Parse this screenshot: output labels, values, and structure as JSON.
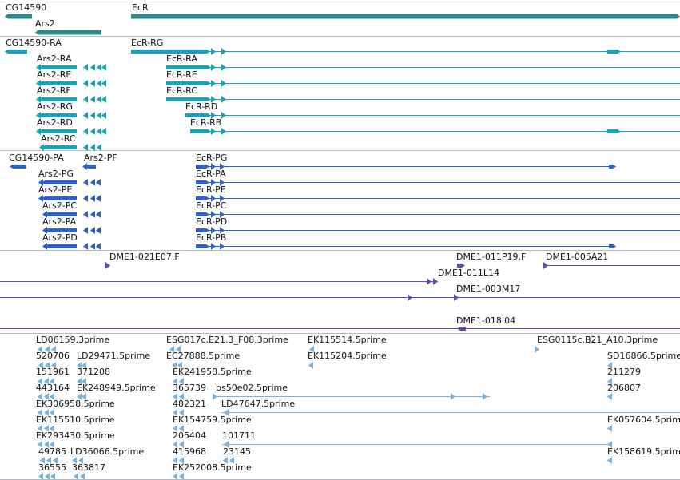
{
  "colors": {
    "genes": "#2e8a8a",
    "transcripts": "#1aa0b8",
    "proteins": "#2f62c6",
    "clones": "#6a4aa8",
    "ests": "#78b4de",
    "separator": "#b8b8c8"
  },
  "panels": [
    {
      "id": "genes",
      "color": "genes",
      "features": [
        {
          "label": "CG14590",
          "strand": "-",
          "exons": [
            [
              6,
              40
            ]
          ]
        },
        {
          "label": "Ars2",
          "strand": "-",
          "exons": [
            [
              44,
              127
            ]
          ]
        },
        {
          "label": "EcR",
          "strand": "+",
          "exons": [
            [
              164,
              851
            ]
          ]
        }
      ]
    },
    {
      "id": "transcripts",
      "color": "transcripts",
      "features": [
        {
          "label": "CG14590-RA",
          "strand": "-",
          "exons": [
            [
              6,
              34
            ]
          ]
        },
        {
          "label": "EcR-RG",
          "strand": "+",
          "intron": [
            164,
            851
          ],
          "exons": [
            [
              164,
              263
            ],
            [
              760,
              777
            ]
          ],
          "arrows": [
            270,
            283
          ]
        },
        {
          "label": "Ars2-RA",
          "strand": "-",
          "exons": [
            [
              48,
              96
            ]
          ],
          "arrows": [
            45,
            104,
            113,
            121,
            127
          ]
        },
        {
          "label": "EcR-RA",
          "strand": "+",
          "intron": [
            208,
            851
          ],
          "exons": [
            [
              208,
              264
            ]
          ],
          "arrows": [
            270,
            283
          ]
        },
        {
          "label": "Ars2-RE",
          "strand": "-",
          "exons": [
            [
              48,
              96
            ]
          ],
          "arrows": [
            45,
            104,
            113,
            121,
            127
          ]
        },
        {
          "label": "EcR-RE",
          "strand": "+",
          "intron": [
            208,
            851
          ],
          "exons": [
            [
              208,
              264
            ]
          ],
          "arrows": [
            270,
            283
          ]
        },
        {
          "label": "Ars2-RF",
          "strand": "-",
          "exons": [
            [
              48,
              96
            ]
          ],
          "arrows": [
            45,
            104,
            113,
            121,
            127
          ]
        },
        {
          "label": "EcR-RC",
          "strand": "+",
          "intron": [
            208,
            851
          ],
          "exons": [
            [
              208,
              264
            ]
          ],
          "arrows": [
            270,
            283
          ]
        },
        {
          "label": "Ars2-RG",
          "strand": "-",
          "exons": [
            [
              48,
              96
            ]
          ],
          "arrows": [
            45,
            104,
            113,
            121,
            127
          ]
        },
        {
          "label": "EcR-RD",
          "strand": "+",
          "intron": [
            232,
            851
          ],
          "exons": [
            [
              232,
              264
            ]
          ],
          "arrows": [
            270,
            283
          ]
        },
        {
          "label": "Ars2-RD",
          "strand": "-",
          "exons": [
            [
              48,
              96
            ]
          ],
          "arrows": [
            45,
            104,
            113,
            121,
            127
          ]
        },
        {
          "label": "EcR-RB",
          "strand": "+",
          "intron": [
            238,
            851
          ],
          "exons": [
            [
              238,
              264
            ],
            [
              760,
              777
            ]
          ],
          "arrows": [
            270,
            283
          ]
        },
        {
          "label": "Ars2-RC",
          "strand": "-",
          "exons": [
            [
              52,
              96
            ]
          ],
          "arrows": [
            49,
            104,
            113,
            121
          ]
        }
      ]
    },
    {
      "id": "proteins",
      "color": "proteins",
      "features": [
        {
          "label": "CG14590-PA",
          "strand": "-",
          "exons": [
            [
              12,
              33
            ]
          ]
        },
        {
          "label": "Ars2-PF",
          "strand": "-",
          "exons": [
            [
              106,
              120
            ]
          ],
          "arrows": [
            103
          ]
        },
        {
          "label": "EcR-PG",
          "strand": "+",
          "intron": [
            245,
            771
          ],
          "exons": [
            [
              245,
              262
            ],
            [
              762,
              771
            ]
          ],
          "arrows": [
            270,
            281
          ]
        },
        {
          "label": "Ars2-PG",
          "strand": "-",
          "exons": [
            [
              52,
              96
            ]
          ],
          "arrows": [
            48,
            104,
            113,
            120
          ]
        },
        {
          "label": "EcR-PA",
          "strand": "+",
          "intron": [
            245,
            851
          ],
          "exons": [
            [
              245,
              262
            ]
          ],
          "arrows": [
            270,
            281
          ]
        },
        {
          "label": "Ars2-PE",
          "strand": "-",
          "exons": [
            [
              52,
              96
            ]
          ],
          "arrows": [
            48,
            104,
            113,
            120
          ]
        },
        {
          "label": "EcR-PE",
          "strand": "+",
          "intron": [
            245,
            851
          ],
          "exons": [
            [
              245,
              262
            ]
          ],
          "arrows": [
            270,
            281
          ]
        },
        {
          "label": "Ars2-PC",
          "strand": "-",
          "exons": [
            [
              56,
              96
            ]
          ],
          "arrows": [
            53,
            104,
            113,
            120
          ]
        },
        {
          "label": "EcR-PC",
          "strand": "+",
          "intron": [
            245,
            851
          ],
          "exons": [
            [
              245,
              262
            ]
          ],
          "arrows": [
            270,
            281
          ]
        },
        {
          "label": "Ars2-PA",
          "strand": "-",
          "exons": [
            [
              56,
              96
            ]
          ],
          "arrows": [
            53,
            104,
            113,
            120
          ]
        },
        {
          "label": "EcR-PD",
          "strand": "+",
          "intron": [
            245,
            851
          ],
          "exons": [
            [
              245,
              262
            ]
          ],
          "arrows": [
            270,
            281
          ]
        },
        {
          "label": "Ars2-PD",
          "strand": "-",
          "exons": [
            [
              56,
              96
            ]
          ],
          "arrows": [
            53,
            104,
            113,
            120
          ]
        },
        {
          "label": "EcR-PB",
          "strand": "+",
          "intron": [
            245,
            771
          ],
          "exons": [
            [
              245,
              262
            ],
            [
              762,
              771
            ]
          ],
          "arrows": [
            270,
            281
          ]
        }
      ]
    },
    {
      "id": "clones",
      "color": "clones",
      "features": [
        {
          "label": "DME1-021E07.F",
          "strand": "+",
          "arrows": [
            138
          ]
        },
        {
          "label": "DME1-011P19.F",
          "strand": "+",
          "exons": [
            [
              572,
              582
            ]
          ]
        },
        {
          "label": "DME1-005A21",
          "strand": "+",
          "intron": [
            683,
            851
          ],
          "arrows": [
            686
          ]
        },
        {
          "label": "DME1-011L14",
          "strand": "+",
          "intron": [
            0,
            548
          ],
          "arrows": [
            540,
            548
          ]
        },
        {
          "label": "DME1-003M17",
          "strand": "+",
          "intron": [
            0,
            851
          ],
          "arrows": [
            516,
            574
          ]
        },
        {
          "label": "DME1-018I04",
          "strand": "-",
          "intron": [
            0,
            851
          ],
          "exons": [
            [
              572,
              583
            ]
          ]
        }
      ]
    },
    {
      "id": "ests",
      "color": "ests",
      "features": [
        {
          "label": "LD06159.3prime",
          "strand": "-",
          "arrows": [
            47,
            56,
            64
          ]
        },
        {
          "label": "ESG017c.E21.3_F08.3prime",
          "strand": "-",
          "arrows": [
            212,
            220
          ]
        },
        {
          "label": "EK115514.5prime",
          "strand": "-",
          "arrows": [
            387
          ]
        },
        {
          "label": "ESG0115c.B21_A10.3prime",
          "strand": "+",
          "arrows": [
            675
          ]
        },
        {
          "label": "520706",
          "strand": "-",
          "arrows": [
            48,
            56,
            64
          ]
        },
        {
          "label": "LD29471.5prime",
          "strand": "-",
          "arrows": [
            96,
            102
          ]
        },
        {
          "label": "EC27888.5prime",
          "strand": "-",
          "arrows": [
            215,
            222
          ]
        },
        {
          "label": "EK115204.5prime",
          "strand": "-",
          "arrows": [
            386
          ]
        },
        {
          "label": "SD16866.5prime",
          "strand": "-",
          "arrows": [
            760
          ]
        },
        {
          "label": "151961",
          "strand": "-",
          "arrows": [
            47,
            55,
            62
          ]
        },
        {
          "label": "371208",
          "strand": "-",
          "arrows": [
            96,
            102
          ]
        },
        {
          "label": "EK241958.5prime",
          "strand": "-",
          "arrows": [
            216,
            224
          ]
        },
        {
          "label": "211279",
          "strand": "-",
          "arrows": [
            760
          ]
        },
        {
          "label": "443164",
          "strand": "-",
          "arrows": [
            47,
            55,
            62
          ]
        },
        {
          "label": "EK248949.5prime",
          "strand": "-",
          "arrows": [
            96,
            102
          ]
        },
        {
          "label": "365739",
          "strand": "-",
          "arrows": [
            216,
            224
          ]
        },
        {
          "label": "bs50e02.5prime",
          "strand": "+",
          "intron": [
            270,
            613
          ],
          "arrows": [
            272,
            570,
            610
          ]
        },
        {
          "label": "206807",
          "strand": "-",
          "arrows": [
            760
          ]
        },
        {
          "label": "EK306958.5prime",
          "strand": "-",
          "arrows": [
            47,
            55,
            62
          ]
        },
        {
          "label": "482321",
          "strand": "-",
          "arrows": [
            216,
            224
          ]
        },
        {
          "label": "LD47647.5prime",
          "strand": "-",
          "intron": [
            277,
            851
          ],
          "arrows": [
            280
          ]
        },
        {
          "label": "EK115510.5prime",
          "strand": "-",
          "arrows": [
            47,
            55,
            62
          ]
        },
        {
          "label": "EK154759.5prime",
          "strand": "-",
          "arrows": [
            216,
            224
          ]
        },
        {
          "label": "EK057604.5prime",
          "strand": "-",
          "arrows": [
            760
          ]
        },
        {
          "label": "EK293430.5prime",
          "strand": "-",
          "arrows": [
            47,
            55,
            62
          ]
        },
        {
          "label": "205404",
          "strand": "-",
          "arrows": [
            216,
            224
          ]
        },
        {
          "label": "101711",
          "strand": "-",
          "intron": [
            278,
            763
          ],
          "arrows": [
            280,
            760
          ]
        },
        {
          "label": "49785",
          "strand": "-",
          "arrows": [
            50,
            58,
            66
          ]
        },
        {
          "label": "LD36066.5prime",
          "strand": "-",
          "arrows": [
            90,
            98
          ]
        },
        {
          "label": "415968",
          "strand": "-",
          "arrows": [
            216,
            224
          ]
        },
        {
          "label": "23145",
          "strand": "-",
          "arrows": [
            279,
            287
          ]
        },
        {
          "label": "EK158619.5prime",
          "strand": "-",
          "arrows": [
            760
          ]
        },
        {
          "label": "36555",
          "strand": "-",
          "arrows": [
            48,
            56,
            63
          ]
        },
        {
          "label": "363817",
          "strand": "-",
          "arrows": [
            92,
            100
          ]
        },
        {
          "label": "EK252008.5prime",
          "strand": "-",
          "arrows": [
            216,
            224
          ]
        }
      ]
    }
  ]
}
